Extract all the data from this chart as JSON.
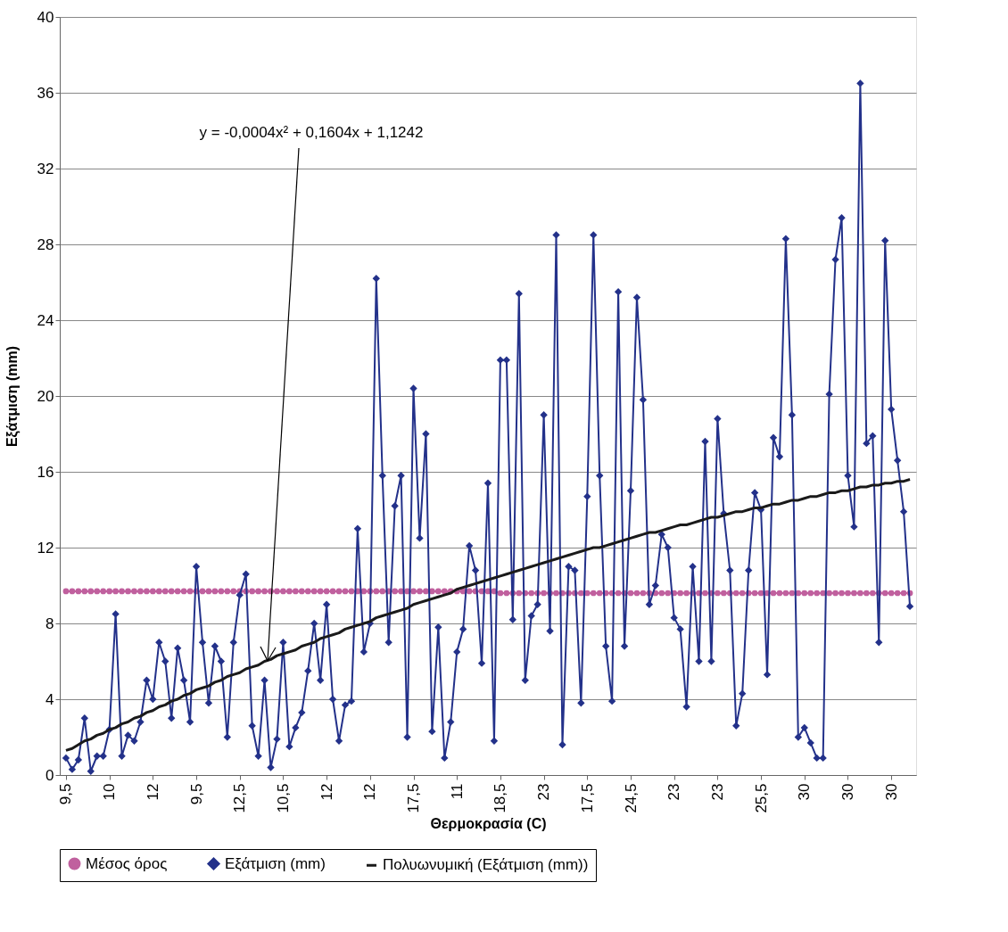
{
  "chart_data": {
    "type": "line",
    "xlabel": "Θερμοκρασία (C)",
    "ylabel": "Εξάτμιση (mm)",
    "categories": [
      "9,5",
      null,
      null,
      null,
      null,
      null,
      null,
      "10",
      null,
      null,
      null,
      null,
      null,
      null,
      "12",
      null,
      null,
      null,
      null,
      null,
      null,
      "9,5",
      null,
      null,
      null,
      null,
      null,
      null,
      "12,5",
      null,
      null,
      null,
      null,
      null,
      null,
      "10,5",
      null,
      null,
      null,
      null,
      null,
      null,
      "12",
      null,
      null,
      null,
      null,
      null,
      null,
      "12",
      null,
      null,
      null,
      null,
      null,
      null,
      "17,5",
      null,
      null,
      null,
      null,
      null,
      null,
      "11",
      null,
      null,
      null,
      null,
      null,
      null,
      "18,5",
      null,
      null,
      null,
      null,
      null,
      null,
      "23",
      null,
      null,
      null,
      null,
      null,
      null,
      "17,5",
      null,
      null,
      null,
      null,
      null,
      null,
      "24,5",
      null,
      null,
      null,
      null,
      null,
      null,
      "23",
      null,
      null,
      null,
      null,
      null,
      null,
      "23",
      null,
      null,
      null,
      null,
      null,
      null,
      "25,5",
      null,
      null,
      null,
      null,
      null,
      null,
      "30",
      null,
      null,
      null,
      null,
      null,
      null,
      "30",
      null,
      null,
      null,
      null,
      null,
      null,
      "30",
      null,
      null,
      null
    ],
    "series": [
      {
        "name": "Μέσος όρος",
        "color": "#c0609e",
        "marker": "circle",
        "values": [
          9.7,
          9.7,
          9.7,
          9.7,
          9.7,
          9.7,
          9.7,
          9.7,
          9.7,
          9.7,
          9.7,
          9.7,
          9.7,
          9.7,
          9.7,
          9.7,
          9.7,
          9.7,
          9.7,
          9.7,
          9.7,
          9.7,
          9.7,
          9.7,
          9.7,
          9.7,
          9.7,
          9.7,
          9.7,
          9.7,
          9.7,
          9.7,
          9.7,
          9.7,
          9.7,
          9.7,
          9.7,
          9.7,
          9.7,
          9.7,
          9.7,
          9.7,
          9.7,
          9.7,
          9.7,
          9.7,
          9.7,
          9.7,
          9.7,
          9.7,
          9.7,
          9.7,
          9.7,
          9.7,
          9.7,
          9.7,
          9.7,
          9.7,
          9.7,
          9.7,
          9.7,
          9.7,
          9.7,
          9.7,
          9.7,
          9.7,
          9.7,
          9.7,
          9.7,
          9.7,
          9.6,
          9.6,
          9.6,
          9.6,
          9.6,
          9.6,
          9.6,
          9.6,
          9.6,
          9.6,
          9.6,
          9.6,
          9.6,
          9.6,
          9.6,
          9.6,
          9.6,
          9.6,
          9.6,
          9.6,
          9.6,
          9.6,
          9.6,
          9.6,
          9.6,
          9.6,
          9.6,
          9.6,
          9.6,
          9.6,
          9.6,
          9.6,
          9.6,
          9.6,
          9.6,
          9.6,
          9.6,
          9.6,
          9.6,
          9.6,
          9.6,
          9.6,
          9.6,
          9.6,
          9.6,
          9.6,
          9.6,
          9.6,
          9.6,
          9.6,
          9.6,
          9.6,
          9.6,
          9.6,
          9.6,
          9.6,
          9.6,
          9.6,
          9.6,
          9.6,
          9.6,
          9.6,
          9.6,
          9.6,
          9.6,
          9.6,
          9.6
        ]
      },
      {
        "name": "Εξάτμιση (mm)",
        "color": "#23318a",
        "marker": "diamond",
        "values": [
          0.9,
          0.3,
          0.8,
          3.0,
          0.2,
          1.0,
          1.0,
          2.4,
          8.5,
          1.0,
          2.1,
          1.8,
          2.8,
          5.0,
          4.0,
          7.0,
          6.0,
          3.0,
          6.7,
          5.0,
          2.8,
          11.0,
          7.0,
          3.8,
          6.8,
          6.0,
          2.0,
          7.0,
          9.5,
          10.6,
          2.6,
          1.0,
          5.0,
          0.4,
          1.9,
          7.0,
          1.5,
          2.5,
          3.3,
          5.5,
          8.0,
          5.0,
          9.0,
          4.0,
          1.8,
          3.7,
          3.9,
          13.0,
          6.5,
          8.0,
          26.2,
          15.8,
          7.0,
          14.2,
          15.8,
          2.0,
          20.4,
          12.5,
          18.0,
          2.3,
          7.8,
          0.9,
          2.8,
          6.5,
          7.7,
          12.1,
          10.8,
          5.9,
          15.4,
          1.8,
          21.9,
          21.9,
          8.2,
          25.4,
          5.0,
          8.4,
          9.0,
          19.0,
          7.6,
          28.5,
          1.6,
          11.0,
          10.8,
          3.8,
          14.7,
          28.5,
          15.8,
          6.8,
          3.9,
          25.5,
          6.8,
          15.0,
          25.2,
          19.8,
          9.0,
          10.0,
          12.7,
          12.0,
          8.3,
          7.7,
          3.6,
          11.0,
          6.0,
          17.6,
          6.0,
          18.8,
          13.8,
          10.8,
          2.6,
          4.3,
          10.8,
          14.9,
          14.0,
          5.3,
          17.8,
          16.8,
          28.3,
          19.0,
          2.0,
          2.5,
          1.7,
          0.9,
          0.9,
          20.1,
          27.2,
          29.4,
          15.8,
          13.1,
          36.5,
          17.5,
          17.9,
          7.0,
          28.2,
          19.3,
          16.6,
          13.9,
          8.9
        ]
      },
      {
        "name": "Πολυωνυμική (Εξάτμιση (mm))",
        "color": "#1a1a1a",
        "marker": "none",
        "values": [
          1.3,
          1.4,
          1.6,
          1.8,
          1.9,
          2.1,
          2.2,
          2.4,
          2.5,
          2.7,
          2.8,
          3.0,
          3.1,
          3.3,
          3.4,
          3.6,
          3.7,
          3.9,
          4.0,
          4.2,
          4.3,
          4.5,
          4.6,
          4.7,
          4.9,
          5.0,
          5.2,
          5.3,
          5.4,
          5.6,
          5.7,
          5.8,
          6.0,
          6.1,
          6.3,
          6.4,
          6.5,
          6.6,
          6.8,
          6.9,
          7.0,
          7.2,
          7.3,
          7.4,
          7.5,
          7.7,
          7.8,
          7.9,
          8.0,
          8.1,
          8.3,
          8.4,
          8.5,
          8.6,
          8.7,
          8.8,
          9.0,
          9.1,
          9.2,
          9.3,
          9.4,
          9.5,
          9.6,
          9.8,
          9.9,
          10.0,
          10.1,
          10.2,
          10.3,
          10.4,
          10.5,
          10.6,
          10.7,
          10.8,
          10.9,
          11.0,
          11.1,
          11.2,
          11.3,
          11.4,
          11.5,
          11.6,
          11.7,
          11.8,
          11.9,
          12.0,
          12.0,
          12.1,
          12.2,
          12.3,
          12.4,
          12.5,
          12.6,
          12.7,
          12.8,
          12.8,
          12.9,
          13.0,
          13.1,
          13.2,
          13.2,
          13.3,
          13.4,
          13.5,
          13.6,
          13.6,
          13.7,
          13.8,
          13.9,
          13.9,
          14.0,
          14.1,
          14.1,
          14.2,
          14.3,
          14.3,
          14.4,
          14.5,
          14.5,
          14.6,
          14.7,
          14.7,
          14.8,
          14.9,
          14.9,
          15.0,
          15.0,
          15.1,
          15.2,
          15.2,
          15.3,
          15.3,
          15.4,
          15.4,
          15.5,
          15.5,
          15.6
        ]
      }
    ],
    "ylim": [
      0,
      40
    ],
    "yticks": [
      0,
      4,
      8,
      12,
      16,
      20,
      24,
      28,
      32,
      36,
      40
    ],
    "grid": "y",
    "legend": "bottom",
    "line_style": "solid",
    "annotations": [
      "y = -0,0004x² + 0,1604x + 1,1242"
    ]
  }
}
